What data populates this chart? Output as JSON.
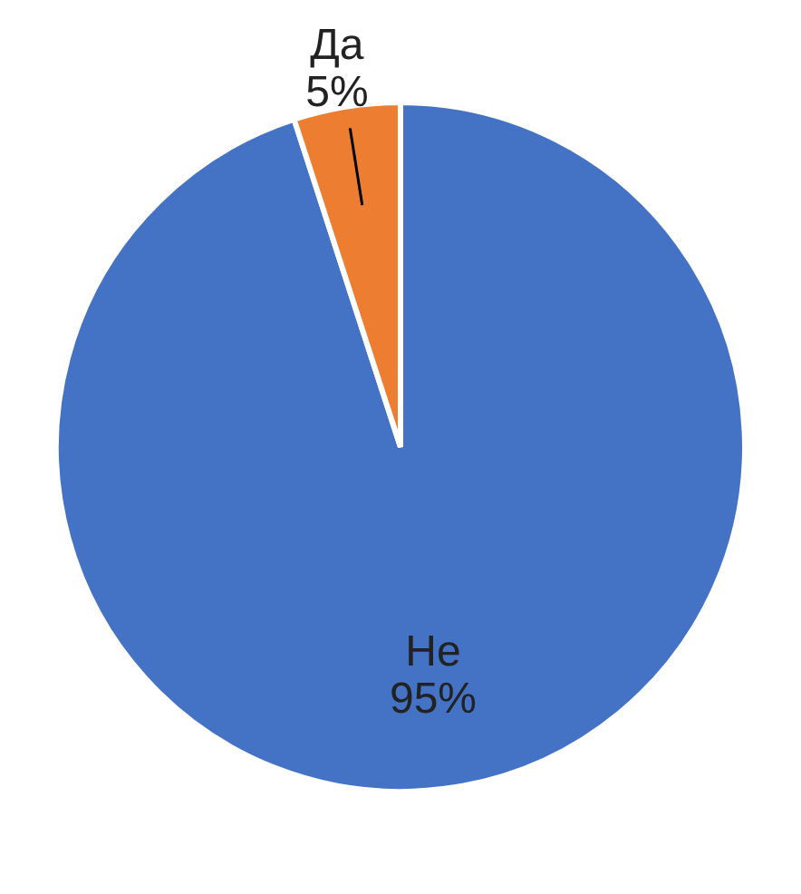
{
  "chart_data": {
    "type": "pie",
    "categories": [
      "Не",
      "Да"
    ],
    "values": [
      95,
      5
    ],
    "colors": [
      "#4472c4",
      "#ed7d31"
    ],
    "value_labels": [
      "95%",
      "5%"
    ]
  }
}
